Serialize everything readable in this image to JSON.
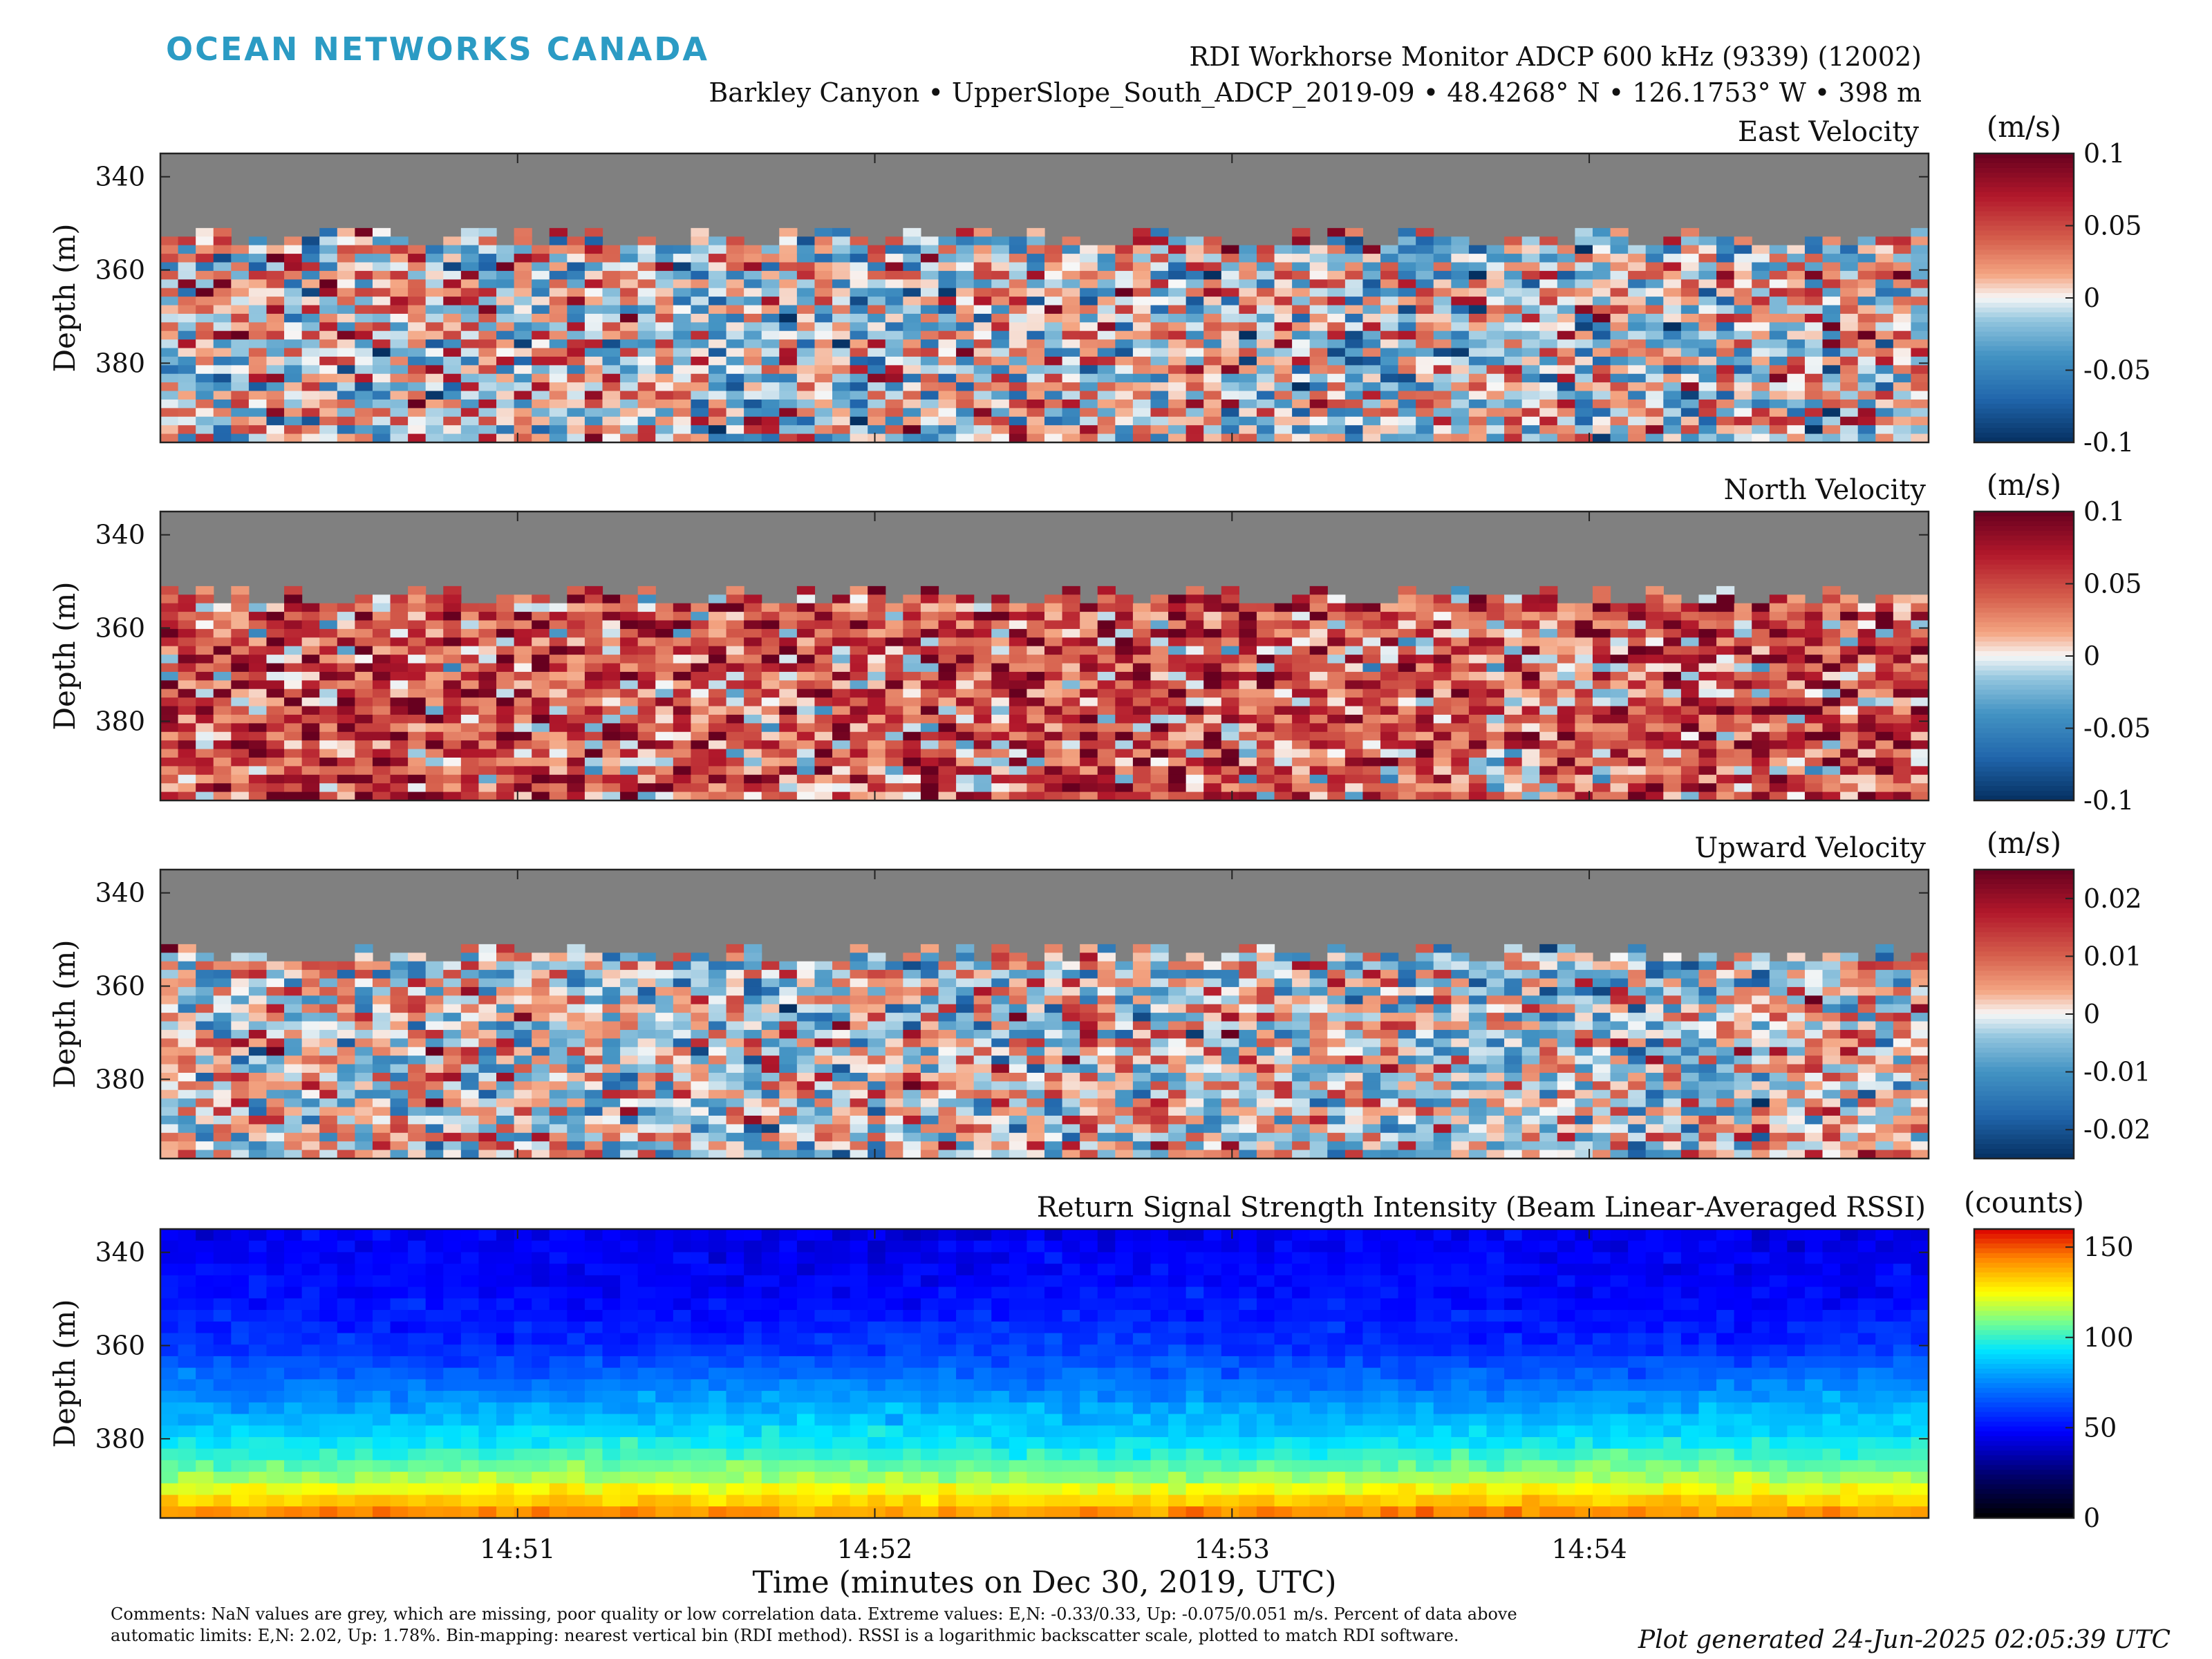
{
  "brand": "OCEAN NETWORKS CANADA",
  "header": {
    "instrument": "RDI Workhorse Monitor ADCP 600 kHz (9339) (12002)",
    "location": "Barkley Canyon • UpperSlope_South_ADCP_2019-09 • 48.4268° N • 126.1753° W • 398 m"
  },
  "footer": {
    "comments": "Comments: NaN values are grey, which are missing, poor quality or low correlation data. Extreme values: E,N: -0.33/0.33, Up: -0.075/0.051 m/s. Percent of data above automatic limits: E,N: 2.02, Up: 1.78%. Bin-mapping: nearest vertical bin (RDI method). RSSI is a logarithmic backscatter scale, plotted to match RDI software.",
    "generated": "Plot generated 24-Jun-2025 02:05:39 UTC"
  },
  "colors": {
    "nan_grey": "#808080",
    "brand": "#2b9bc4"
  },
  "chart_data": [
    {
      "type": "heatmap",
      "title": "East Velocity",
      "ylabel": "Depth (m)",
      "yticks": [
        340,
        360,
        380
      ],
      "ylim": [
        397,
        335
      ],
      "x_start_minutes": 50.0,
      "x_end_minutes": 54.95,
      "columns": 100,
      "bins": 25,
      "nan_above_depth_m": 354,
      "colormap": "diverging-red-blue",
      "colorbar_label": "(m/s)",
      "colorbar_ticks": [
        -0.1,
        -0.05,
        0,
        0.05,
        0.1
      ],
      "colorbar_tick_labels": [
        "-0.1",
        "-0.05",
        "0",
        "0.05",
        "0.1"
      ],
      "clim": [
        -0.1,
        0.1
      ],
      "typical_value": 0.0,
      "spread": 0.045
    },
    {
      "type": "heatmap",
      "title": "North Velocity",
      "ylabel": "Depth (m)",
      "yticks": [
        340,
        360,
        380
      ],
      "ylim": [
        397,
        335
      ],
      "x_start_minutes": 50.0,
      "x_end_minutes": 54.95,
      "columns": 100,
      "bins": 25,
      "nan_above_depth_m": 354,
      "colormap": "diverging-red-blue",
      "colorbar_label": "(m/s)",
      "colorbar_ticks": [
        -0.1,
        -0.05,
        0,
        0.05,
        0.1
      ],
      "colorbar_tick_labels": [
        "-0.1",
        "-0.05",
        "0",
        "0.05",
        "0.1"
      ],
      "clim": [
        -0.1,
        0.1
      ],
      "typical_value": 0.045,
      "spread": 0.04
    },
    {
      "type": "heatmap",
      "title": "Upward Velocity",
      "ylabel": "Depth (m)",
      "yticks": [
        340,
        360,
        380
      ],
      "ylim": [
        397,
        335
      ],
      "x_start_minutes": 50.0,
      "x_end_minutes": 54.95,
      "columns": 100,
      "bins": 25,
      "nan_above_depth_m": 354,
      "colormap": "diverging-red-blue",
      "colorbar_label": "(m/s)",
      "colorbar_ticks": [
        -0.02,
        -0.01,
        0,
        0.01,
        0.02
      ],
      "colorbar_tick_labels": [
        "-0.02",
        "-0.01",
        "0",
        "0.01",
        "0.02"
      ],
      "clim": [
        -0.025,
        0.025
      ],
      "typical_value": 0.0,
      "spread": 0.01
    },
    {
      "type": "heatmap",
      "title": "Return Signal Strength Intensity (Beam Linear-Averaged RSSI)",
      "ylabel": "Depth (m)",
      "yticks": [
        340,
        360,
        380
      ],
      "ylim": [
        397,
        335
      ],
      "x_start_minutes": 50.0,
      "x_end_minutes": 54.95,
      "columns": 100,
      "bins": 25,
      "colormap": "jet",
      "colorbar_label": "(counts)",
      "colorbar_ticks": [
        0,
        50,
        100,
        150
      ],
      "colorbar_tick_labels": [
        "0",
        "50",
        "100",
        "150"
      ],
      "clim": [
        0,
        160
      ],
      "rssi_profile": {
        "depths_m": [
          335,
          350,
          360,
          370,
          380,
          388,
          394,
          397
        ],
        "counts": [
          45,
          50,
          58,
          75,
          92,
          112,
          135,
          145
        ]
      },
      "xticks": [
        51,
        52,
        53,
        54
      ],
      "xtick_labels": [
        "14:51",
        "14:52",
        "14:53",
        "14:54"
      ],
      "xlabel": "Time (minutes on Dec 30, 2019, UTC)"
    }
  ]
}
